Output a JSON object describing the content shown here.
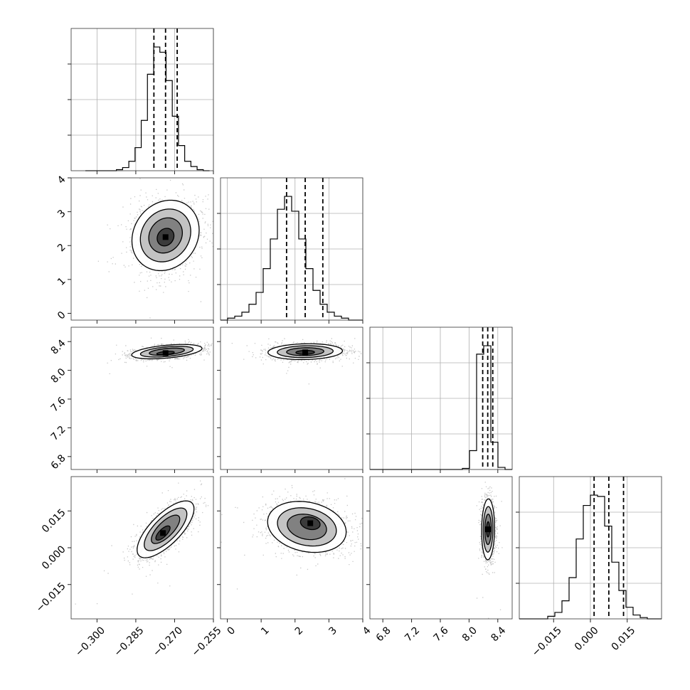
{
  "chart_data": {
    "type": "corner",
    "title": "",
    "n_params": 4,
    "parameters": [
      {
        "label": "",
        "range": [
          -0.31,
          -0.255
        ],
        "ticks": [
          -0.3,
          -0.285,
          -0.27,
          -0.255
        ],
        "tick_labels": [
          "−0.300",
          "−0.285",
          "−0.270",
          "−0.255"
        ]
      },
      {
        "label": "",
        "range": [
          -0.2,
          4.0
        ],
        "ticks": [
          0,
          1,
          2,
          3,
          4
        ],
        "tick_labels": [
          "0",
          "1",
          "2",
          "3",
          "4"
        ]
      },
      {
        "label": "",
        "range": [
          6.62,
          8.6
        ],
        "ticks": [
          6.8,
          7.2,
          7.6,
          8.0,
          8.4
        ],
        "tick_labels": [
          "6.8",
          "7.2",
          "7.6",
          "8.0",
          "8.4"
        ]
      },
      {
        "label": "",
        "range": [
          -0.029,
          0.029
        ],
        "ticks": [
          -0.015,
          0.0,
          0.015
        ],
        "tick_labels": [
          "−0.015",
          "0.000",
          "0.015"
        ]
      }
    ],
    "medians": [
      -0.2735,
      2.3,
      8.26,
      0.0075
    ],
    "quantiles_16_84": [
      [
        -0.278,
        -0.269
      ],
      [
        1.75,
        2.82
      ],
      [
        8.19,
        8.33
      ],
      [
        0.0015,
        0.0135
      ]
    ],
    "histograms": [
      {
        "param": 0,
        "bin_edges_range": [
          -0.3045,
          -0.2565
        ],
        "counts": [
          0,
          0,
          0,
          0,
          0,
          1,
          3,
          9,
          22,
          48,
          92,
          118,
          113,
          86,
          52,
          24,
          9,
          4,
          1,
          0
        ]
      },
      {
        "param": 1,
        "bin_edges_range": [
          -0.2,
          4.0
        ],
        "counts": [
          0,
          2,
          4,
          8,
          16,
          28,
          52,
          82,
          112,
          125,
          110,
          82,
          52,
          30,
          16,
          8,
          4,
          2,
          0,
          0
        ]
      },
      {
        "param": 2,
        "bin_edges_range": [
          6.62,
          8.6
        ],
        "counts": [
          0,
          0,
          0,
          0,
          0,
          0,
          0,
          0,
          0,
          0,
          0,
          0,
          0,
          1,
          18,
          110,
          118,
          26,
          2,
          0
        ]
      },
      {
        "param": 3,
        "bin_edges_range": [
          -0.029,
          0.029
        ],
        "counts": [
          0,
          0,
          0,
          0,
          2,
          5,
          14,
          32,
          62,
          88,
          96,
          95,
          72,
          44,
          22,
          9,
          3,
          1,
          0,
          0
        ]
      }
    ],
    "pairs": [
      {
        "x": 0,
        "y": 1,
        "center": [
          -0.2735,
          2.3
        ],
        "sigma": [
          0.0065,
          0.52
        ],
        "rho": 0.15,
        "core_offset": [
          0.0,
          -0.05
        ]
      },
      {
        "x": 0,
        "y": 2,
        "center": [
          -0.273,
          8.26
        ],
        "sigma": [
          0.0068,
          0.05
        ],
        "rho": 0.45,
        "core_offset": [
          -0.0005,
          -0.02
        ]
      },
      {
        "x": 1,
        "y": 2,
        "center": [
          2.3,
          8.26
        ],
        "sigma": [
          0.55,
          0.055
        ],
        "rho": 0.1,
        "core_offset": [
          0.0,
          -0.01
        ]
      },
      {
        "x": 0,
        "y": 3,
        "center": [
          -0.2735,
          0.0075
        ],
        "sigma": [
          0.0055,
          0.0058
        ],
        "rho": 0.72,
        "core_offset": [
          -0.001,
          -0.0015
        ]
      },
      {
        "x": 1,
        "y": 3,
        "center": [
          2.35,
          0.0085
        ],
        "sigma": [
          0.58,
          0.0052
        ],
        "rho": -0.2,
        "core_offset": [
          0.1,
          0.0015
        ]
      },
      {
        "x": 2,
        "y": 3,
        "center": [
          8.265,
          0.0075
        ],
        "sigma": [
          0.045,
          0.0062
        ],
        "rho": 0.05,
        "core_offset": [
          0.0,
          0.0
        ]
      }
    ],
    "contour_levels_sigma": [
      0.5,
      1.0,
      1.5,
      2.0
    ],
    "grid": true
  }
}
